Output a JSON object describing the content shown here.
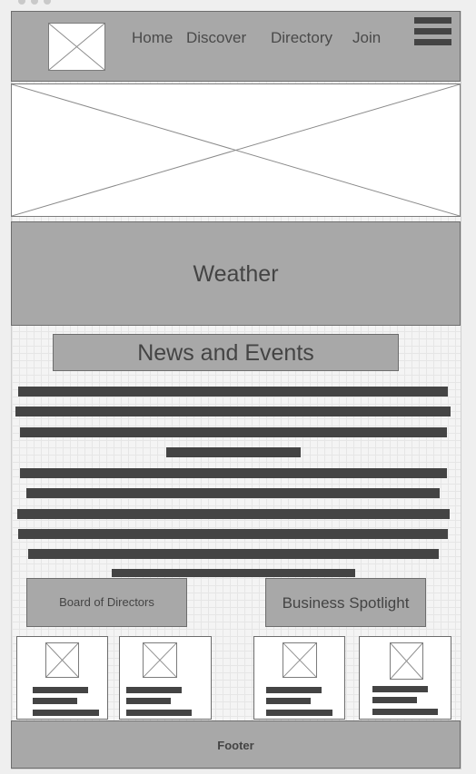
{
  "nav": {
    "home": "Home",
    "discover": "Discover",
    "directory": "Directory",
    "join": "Join"
  },
  "weather": {
    "title": "Weather"
  },
  "news": {
    "title": "News and Events"
  },
  "sections": {
    "board": "Board of Directors",
    "spotlight": "Business Spotlight"
  },
  "footer": {
    "label": "Footer"
  },
  "icons": {
    "menu": "hamburger-menu-icon",
    "image_placeholder": "image-placeholder-icon"
  },
  "colors": {
    "panel": "#a8a8a8",
    "text_bar": "#444444",
    "page": "#efefef"
  }
}
